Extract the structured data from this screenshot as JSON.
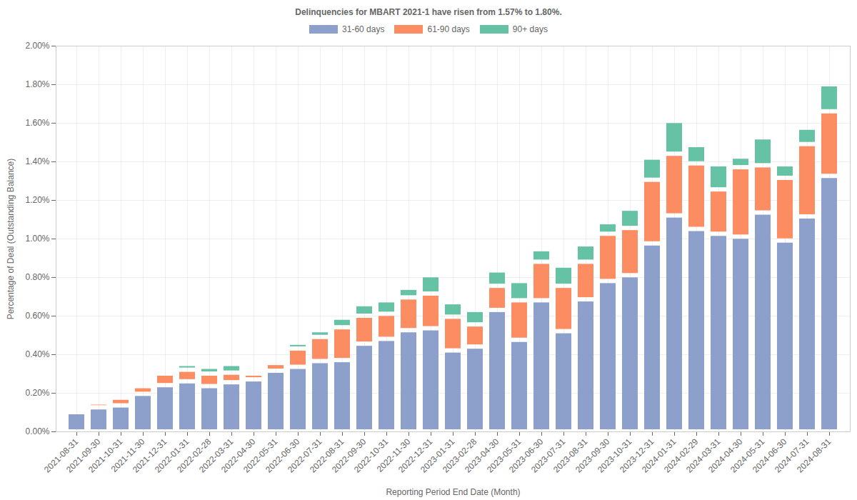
{
  "chart_data": {
    "type": "bar",
    "stacked": true,
    "grid": true,
    "legend": "top",
    "title": "Delinquencies for MBART 2021-1 have risen from 1.57% to 1.80%.",
    "x_label": "Reporting Period End Date (Month)",
    "y_label": "Percentage of Deal (Outstanding Balance)",
    "categories": [
      "2021-08-31",
      "2021-09-30",
      "2021-10-31",
      "2021-11-30",
      "2021-12-31",
      "2022-01-31",
      "2022-02-28",
      "2022-03-31",
      "2022-04-30",
      "2022-05-31",
      "2022-06-30",
      "2022-07-31",
      "2022-08-31",
      "2022-09-30",
      "2022-10-31",
      "2022-11-30",
      "2022-12-31",
      "2023-01-31",
      "2023-02-28",
      "2023-04-30",
      "2023-05-31",
      "2023-06-30",
      "2023-07-31",
      "2023-08-31",
      "2023-09-30",
      "2023-10-31",
      "2023-12-31",
      "2024-01-31",
      "2024-02-29",
      "2024-03-31",
      "2024-04-30",
      "2024-05-31",
      "2024-06-30",
      "2024-07-31",
      "2024-08-31"
    ],
    "series": [
      {
        "name": "31-60 days",
        "color": "#8da0cb",
        "values": [
          0.1,
          0.125,
          0.135,
          0.195,
          0.24,
          0.26,
          0.235,
          0.255,
          0.27,
          0.315,
          0.335,
          0.365,
          0.37,
          0.455,
          0.48,
          0.525,
          0.535,
          0.42,
          0.44,
          0.63,
          0.475,
          0.68,
          0.52,
          0.685,
          0.78,
          0.81,
          0.975,
          1.12,
          1.05,
          1.025,
          1.01,
          1.135,
          0.99,
          1.115,
          1.325
        ]
      },
      {
        "name": "61-90 days",
        "color": "#fc8d62",
        "values": [
          0.005,
          0.025,
          0.04,
          0.04,
          0.06,
          0.06,
          0.065,
          0.05,
          0.03,
          0.04,
          0.095,
          0.125,
          0.17,
          0.145,
          0.13,
          0.17,
          0.18,
          0.175,
          0.115,
          0.125,
          0.205,
          0.2,
          0.235,
          0.195,
          0.245,
          0.245,
          0.33,
          0.32,
          0.34,
          0.23,
          0.36,
          0.245,
          0.325,
          0.375,
          0.335
        ]
      },
      {
        "name": "90+ days",
        "color": "#66c2a5",
        "values": [
          0.0,
          0.0,
          0.015,
          0.015,
          0.01,
          0.03,
          0.035,
          0.045,
          0.015,
          0.015,
          0.03,
          0.035,
          0.05,
          0.06,
          0.07,
          0.05,
          0.095,
          0.075,
          0.075,
          0.08,
          0.1,
          0.065,
          0.105,
          0.09,
          0.06,
          0.1,
          0.115,
          0.17,
          0.095,
          0.13,
          0.055,
          0.145,
          0.07,
          0.085,
          0.14
        ]
      }
    ],
    "ylim": [
      0,
      2
    ],
    "yticks": [
      {
        "value": 0,
        "label": "0.00%"
      },
      {
        "value": 0.2,
        "label": "0.20%"
      },
      {
        "value": 0.4,
        "label": "0.40%"
      },
      {
        "value": 0.6,
        "label": "0.60%"
      },
      {
        "value": 0.8,
        "label": "0.80%"
      },
      {
        "value": 1.0,
        "label": "1.00%"
      },
      {
        "value": 1.2,
        "label": "1.20%"
      },
      {
        "value": 1.4,
        "label": "1.40%"
      },
      {
        "value": 1.6,
        "label": "1.60%"
      },
      {
        "value": 1.8,
        "label": "1.80%"
      },
      {
        "value": 2.0,
        "label": "2.00%"
      }
    ]
  }
}
